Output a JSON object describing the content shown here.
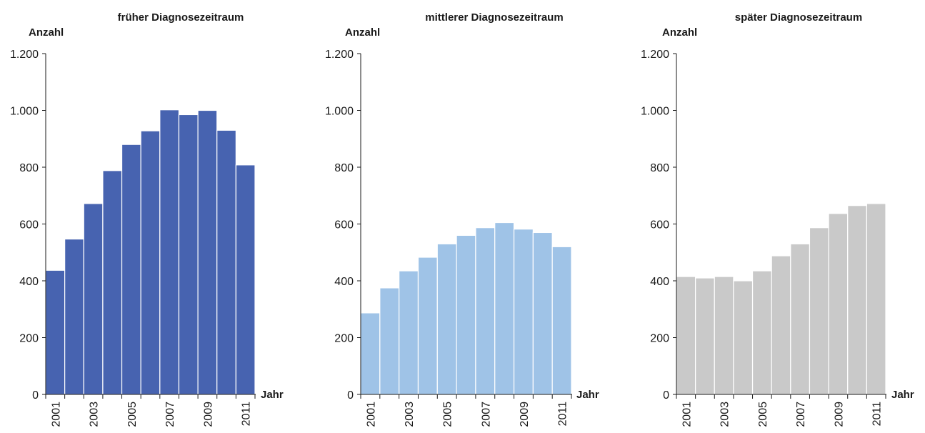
{
  "chart_data": [
    {
      "type": "bar",
      "title": "früher Diagnosezeitraum",
      "ylabel": "Anzahl",
      "xlabel": "Jahr",
      "color": "#4763b0",
      "ylim": [
        0,
        1200
      ],
      "yticks": [
        0,
        200,
        400,
        600,
        800,
        1000,
        1200
      ],
      "ytick_labels": [
        "0",
        "200",
        "400",
        "600",
        "800",
        "1.000",
        "1.200"
      ],
      "categories": [
        "2001",
        "2002",
        "2003",
        "2004",
        "2005",
        "2006",
        "2007",
        "2008",
        "2009",
        "2010",
        "2011"
      ],
      "xtick_labels": [
        "2001",
        "2003",
        "2005",
        "2007",
        "2009",
        "2011"
      ],
      "values": [
        437,
        547,
        672,
        788,
        880,
        928,
        1002,
        985,
        1000,
        930,
        808
      ]
    },
    {
      "type": "bar",
      "title": "mittlerer Diagnosezeitraum",
      "ylabel": "Anzahl",
      "xlabel": "Jahr",
      "color": "#9fc3e7",
      "ylim": [
        0,
        1200
      ],
      "yticks": [
        0,
        200,
        400,
        600,
        800,
        1000,
        1200
      ],
      "ytick_labels": [
        "0",
        "200",
        "400",
        "600",
        "800",
        "1.000",
        "1.200"
      ],
      "categories": [
        "2001",
        "2002",
        "2003",
        "2004",
        "2005",
        "2006",
        "2007",
        "2008",
        "2009",
        "2010",
        "2011"
      ],
      "xtick_labels": [
        "2001",
        "2003",
        "2005",
        "2007",
        "2009",
        "2011"
      ],
      "values": [
        287,
        375,
        435,
        483,
        530,
        560,
        587,
        605,
        582,
        570,
        520
      ]
    },
    {
      "type": "bar",
      "title": "später Diagnosezeitraum",
      "ylabel": "Anzahl",
      "xlabel": "Jahr",
      "color": "#c9c9c9",
      "ylim": [
        0,
        1200
      ],
      "yticks": [
        0,
        200,
        400,
        600,
        800,
        1000,
        1200
      ],
      "ytick_labels": [
        "0",
        "200",
        "400",
        "600",
        "800",
        "1.000",
        "1.200"
      ],
      "categories": [
        "2001",
        "2002",
        "2003",
        "2004",
        "2005",
        "2006",
        "2007",
        "2008",
        "2009",
        "2010",
        "2011"
      ],
      "xtick_labels": [
        "2001",
        "2003",
        "2005",
        "2007",
        "2009",
        "2011"
      ],
      "values": [
        415,
        410,
        415,
        400,
        435,
        488,
        530,
        587,
        637,
        665,
        672
      ]
    }
  ]
}
